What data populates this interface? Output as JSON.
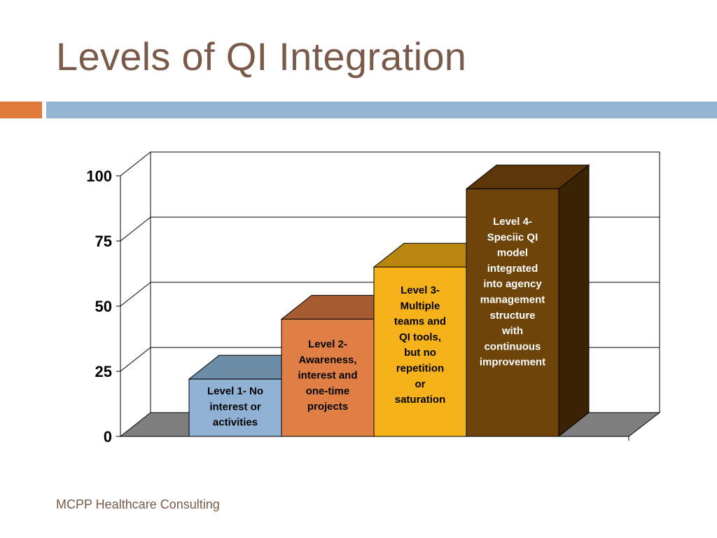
{
  "slide": {
    "title": "Levels of QI Integration",
    "footer": "MCPP Healthcare Consulting"
  },
  "colors": {
    "title": "#7a5a4a",
    "accent_orange": "#e07a3c",
    "accent_blue": "#95b4d2"
  },
  "chart_data": {
    "type": "bar",
    "style": "3d-column",
    "title": "",
    "xlabel": "",
    "ylabel": "",
    "ylim": [
      0,
      100
    ],
    "y_ticks": [
      "0",
      "25",
      "50",
      "75",
      "100"
    ],
    "grid": true,
    "legend": "none",
    "categories": [
      "Level 1- No interest or activities",
      "Level 2- Awareness, interest and one-time projects",
      "Level 3- Multiple teams and QI tools, but no repetition or saturation",
      "Level 4- Speciic QI model integrated into agency management structure with continuous improvement"
    ],
    "values": [
      22,
      45,
      65,
      95
    ],
    "bars": [
      {
        "lines": [
          "Level 1- No",
          "interest or",
          "activities"
        ],
        "front": "#8fb2d4",
        "top": "#6d8ca6",
        "side": "#6d8ca6",
        "text": "#000000"
      },
      {
        "lines": [
          "Level 2-",
          "Awareness,",
          "interest and",
          "one-time",
          "projects"
        ],
        "front": "#df7f45",
        "top": "#a55c31",
        "side": "#a55c31",
        "text": "#000000"
      },
      {
        "lines": [
          "Level 3-",
          "Multiple",
          "teams and",
          "QI tools,",
          "but no",
          "repetition",
          "or",
          "saturation"
        ],
        "front": "#f5b21a",
        "top": "#b8860f",
        "side": "#b8860f",
        "text": "#000000"
      },
      {
        "lines": [
          "Level 4-",
          "Speciic QI",
          "model",
          "integrated",
          "into agency",
          "management",
          "structure",
          "with",
          "continuous",
          "improvement"
        ],
        "front": "#6e440a",
        "top": "#5a3608",
        "side": "#3a2304",
        "text": "#ffffff"
      }
    ]
  }
}
